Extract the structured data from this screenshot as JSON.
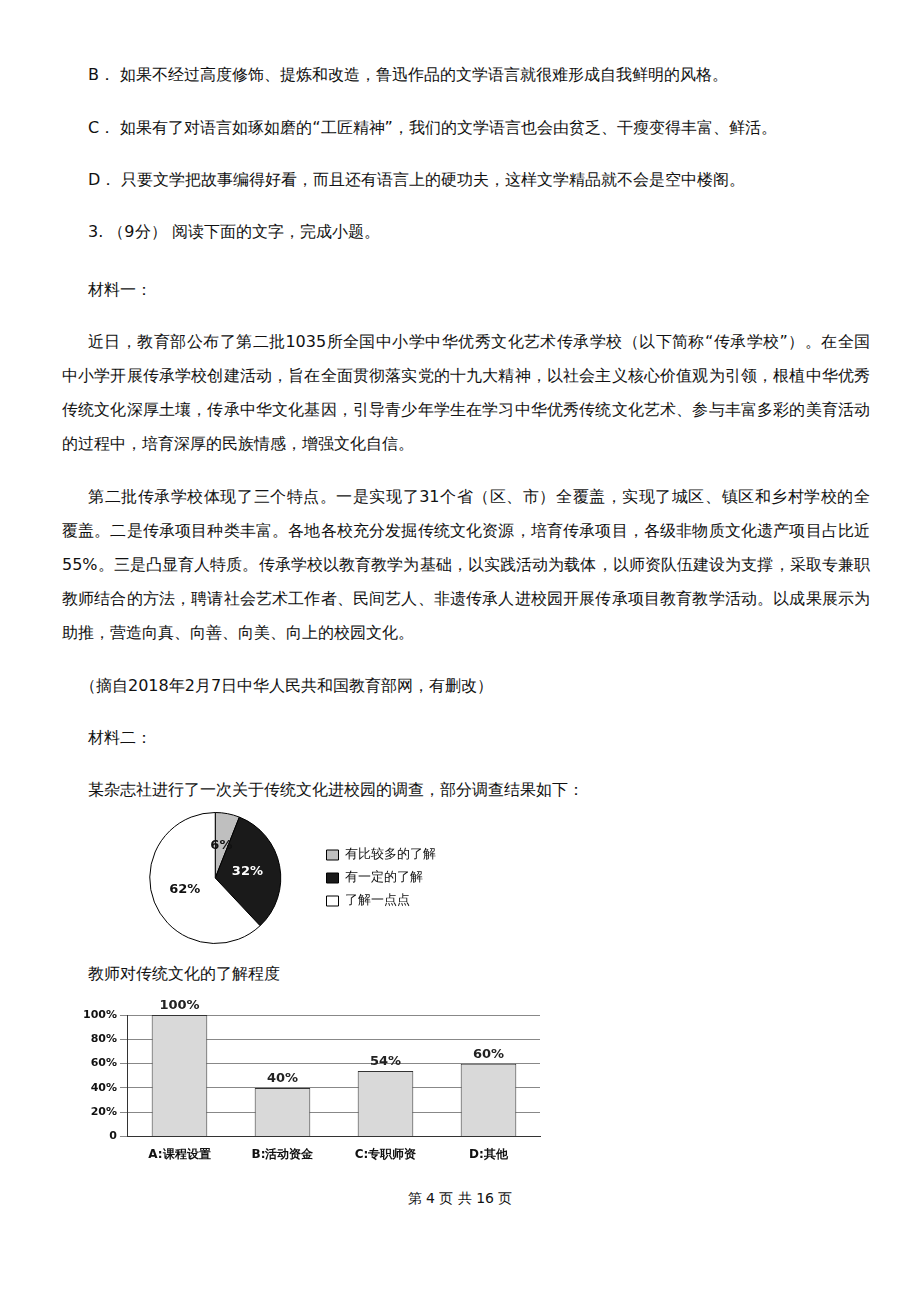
{
  "page": {
    "options": [
      "B．  如果不经过高度修饰、提炼和改造，鲁迅作品的文学语言就很难形成自我鲜明的风格。",
      "C．  如果有了对语言如琢如磨的“工匠精神”，我们的文学语言也会由贫乏、干瘦变得丰富、鲜活。",
      "D．  只要文学把故事编得好看，而且还有语言上的硬功夫，这样文学精品就不会是空中楼阁。"
    ],
    "question": "3.  （9分）  阅读下面的文字，完成小题。",
    "material1": {
      "label": "材料一：",
      "paragraphs": [
        [
          "近日，教育部公布了第二批1035所全国中小学中华优秀文化艺术传承学校（以下简称“传承学校”）。在全国",
          "中小学开展传承学校创建活动，旨在全面贯彻落实党的十九大精神，以社会主义核心价值观为引领，根植中华优秀",
          "传统文化深厚土壤，传承中华文化基因，引导青少年学生在学习中华优秀传统文化艺术、参与丰富多彩的美育活动",
          "的过程中，培育深厚的民族情感，增强文化自信。"
        ],
        [
          "第二批传承学校体现了三个特点。一是实现了31个省（区、市）全覆盖，实现了城区、镇区和乡村学校的全",
          "覆盖。二是传承项目种类丰富。各地各校充分发掘传统文化资源，培育传承项目，各级非物质文化遗产项目占比近",
          "55%。三是凸显育人特质。传承学校以教育教学为基础，以实践活动为载体，以师资队伍建设为支撑，采取专兼职",
          "教师结合的方法，聘请社会艺术工作者、民间艺人、非遗传承人进校园开展传承项目教育教学活动。以成果展示为",
          "助推，营造向真、向善、向美、向上的校园文化。"
        ]
      ],
      "source": "（摘自2018年2月7日中华人民共和国教育部网，有删改）"
    },
    "material2": {
      "label": "材料二：",
      "intro": "某杂志社进行了一次关于传统文化进校园的调查，部分调查结果如下："
    },
    "footer": "第 4 页 共 16 页"
  },
  "chart_data": [
    {
      "type": "pie",
      "title": "教师对传统文化的了解程度",
      "categories": [
        "有比较多的了解",
        "有一定的了解",
        "了解一点点"
      ],
      "values": [
        6,
        32,
        62
      ],
      "value_labels": [
        "6%",
        "32%",
        "62%"
      ],
      "colors": [
        "#bfbfbf",
        "#1a1a1a",
        "#ffffff"
      ],
      "data_labels": true,
      "legend": "right"
    },
    {
      "type": "bar",
      "categories": [
        "A:课程设置",
        "B:活动资金",
        "C:专职师资",
        "D:其他"
      ],
      "values": [
        100,
        40,
        54,
        60
      ],
      "value_labels": [
        "100%",
        "40%",
        "54%",
        "60%"
      ],
      "color": "#d9d9d9",
      "data_labels": true,
      "ylim": [
        0,
        100
      ],
      "yticks": [
        0,
        {
          "value": 20,
          "label": "20%"
        },
        {
          "value": 40,
          "label": "40%"
        },
        {
          "value": 60,
          "label": "60%"
        },
        {
          "value": 80,
          "label": "80%"
        },
        {
          "value": 100,
          "label": "100%"
        }
      ],
      "grid": true
    }
  ]
}
